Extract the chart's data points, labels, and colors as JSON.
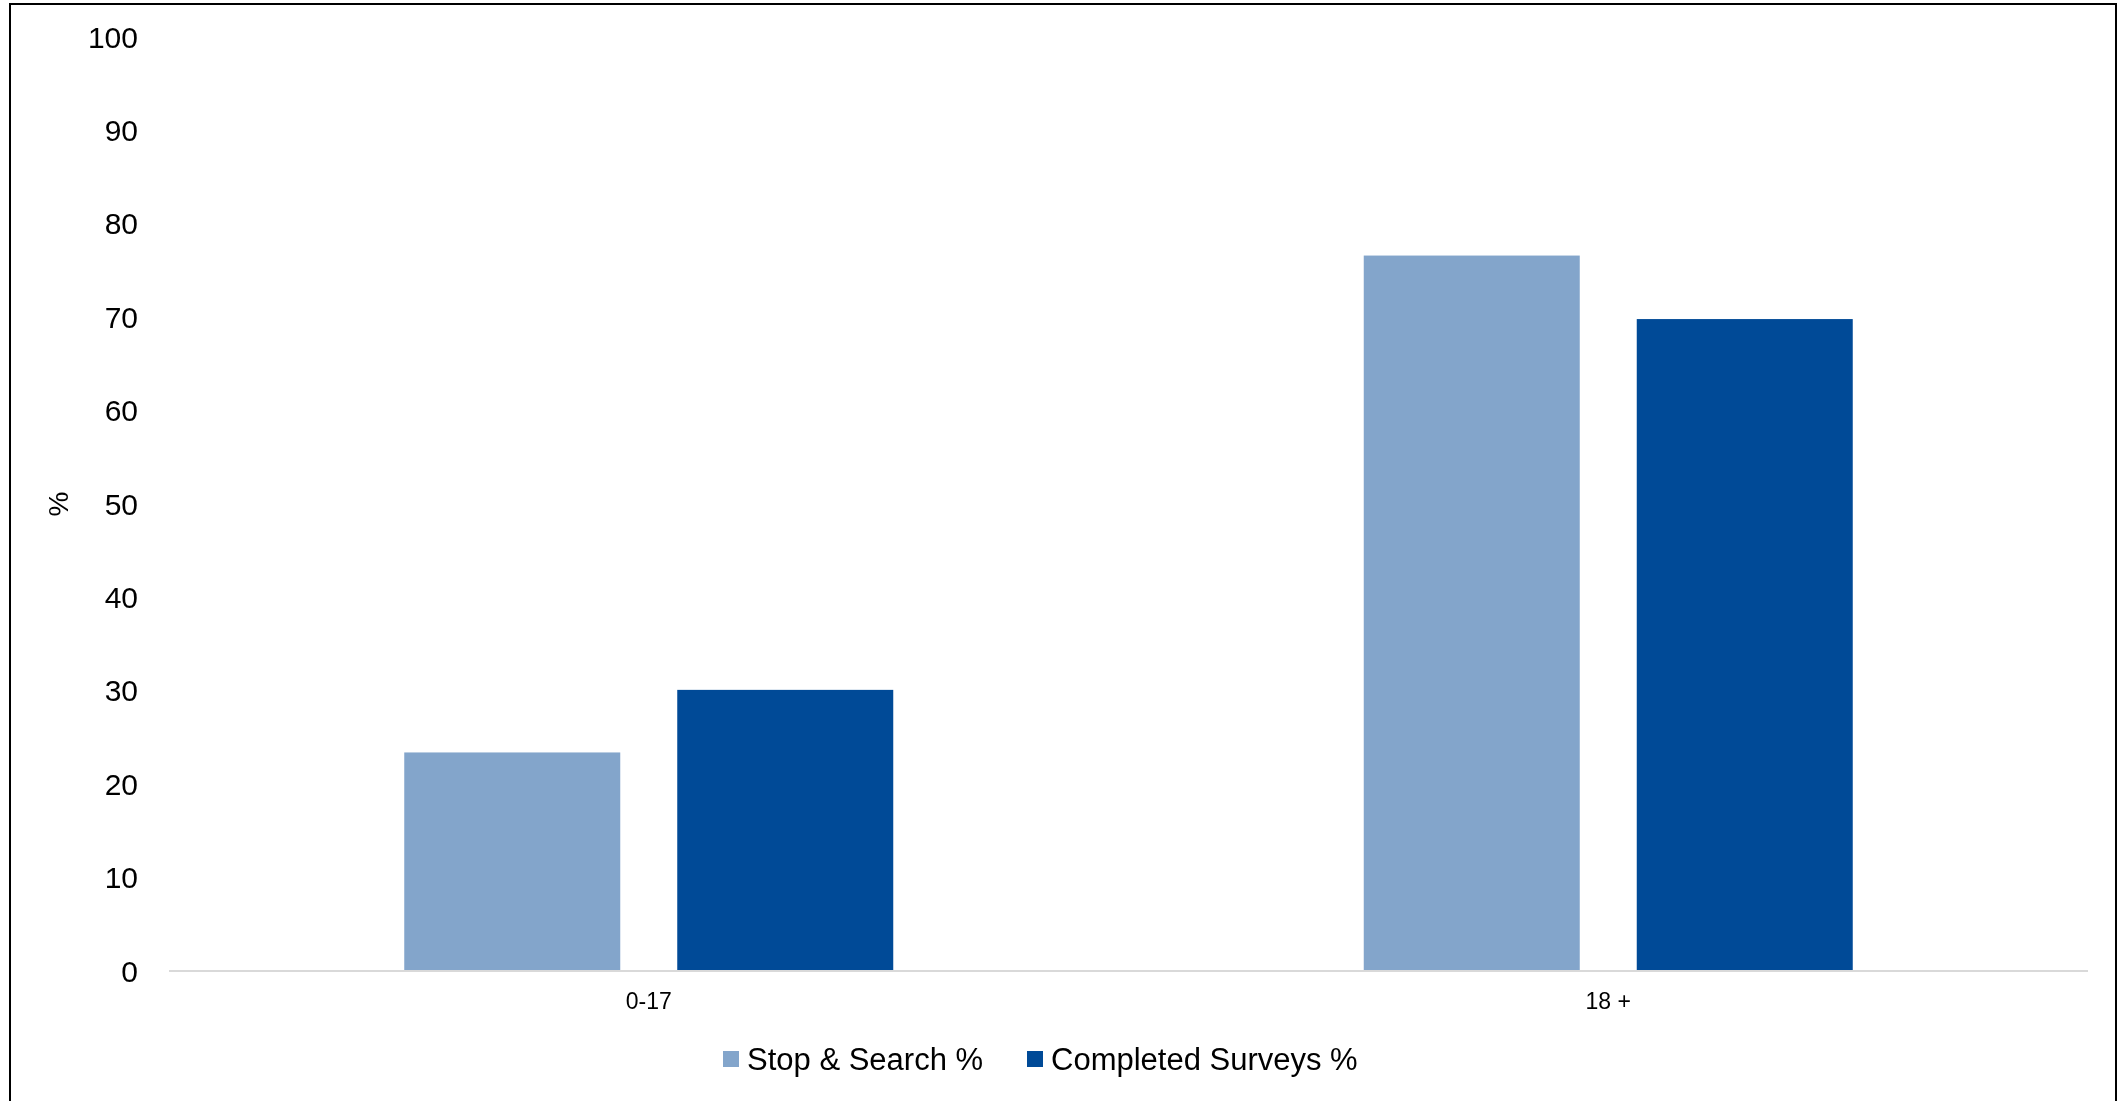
{
  "chart_data": {
    "type": "bar",
    "ylabel": "%",
    "categories": [
      "0-17",
      "18 +"
    ],
    "series": [
      {
        "name": "Stop & Search %",
        "color": "#83a5cb",
        "values": [
          23.4,
          76.6
        ]
      },
      {
        "name": "Completed Surveys %",
        "color": "#004a97",
        "values": [
          30.1,
          69.8
        ]
      }
    ],
    "ylim": [
      0,
      100
    ],
    "yticks": [
      0,
      10,
      20,
      30,
      40,
      50,
      60,
      70,
      80,
      90,
      100
    ],
    "grid": false,
    "legend": "bottom"
  }
}
